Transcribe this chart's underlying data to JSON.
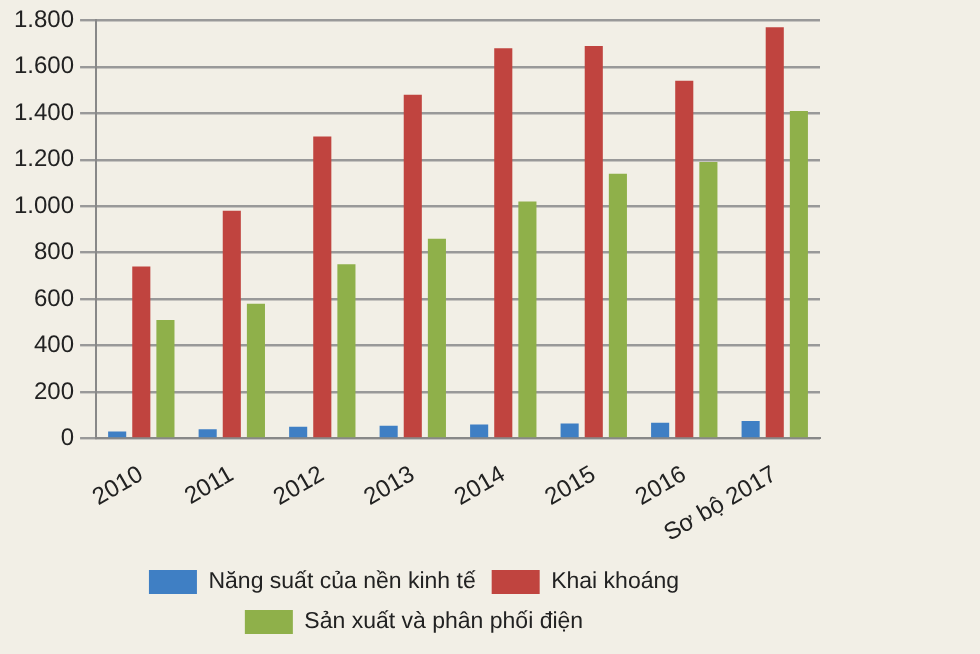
{
  "chart_data": {
    "type": "bar",
    "categories": [
      "2010",
      "2011",
      "2012",
      "2013",
      "2014",
      "2015",
      "2016",
      "Sơ bộ 2017"
    ],
    "series": [
      {
        "name": "Năng suất của nền kinh tế",
        "color": "#3f7fc4",
        "values": [
          30,
          40,
          50,
          55,
          60,
          65,
          68,
          75
        ]
      },
      {
        "name": "Khai khoáng",
        "color": "#c0443f",
        "values": [
          740,
          980,
          1300,
          1480,
          1680,
          1690,
          1540,
          1770
        ]
      },
      {
        "name": "Sản xuất và phân phối điện",
        "color": "#8fb04a",
        "values": [
          510,
          580,
          750,
          860,
          1020,
          1140,
          1190,
          1410
        ]
      }
    ],
    "ylim": [
      0,
      1800
    ],
    "yticks": [
      {
        "value": 0,
        "label": "0"
      },
      {
        "value": 200,
        "label": "200"
      },
      {
        "value": 400,
        "label": "400"
      },
      {
        "value": 600,
        "label": "600"
      },
      {
        "value": 800,
        "label": "800"
      },
      {
        "value": 1000,
        "label": "1.000"
      },
      {
        "value": 1200,
        "label": "1.200"
      },
      {
        "value": 1400,
        "label": "1.400"
      },
      {
        "value": 1600,
        "label": "1.600"
      },
      {
        "value": 1800,
        "label": "1.800"
      }
    ],
    "grid": "y",
    "legend": "bottom"
  }
}
